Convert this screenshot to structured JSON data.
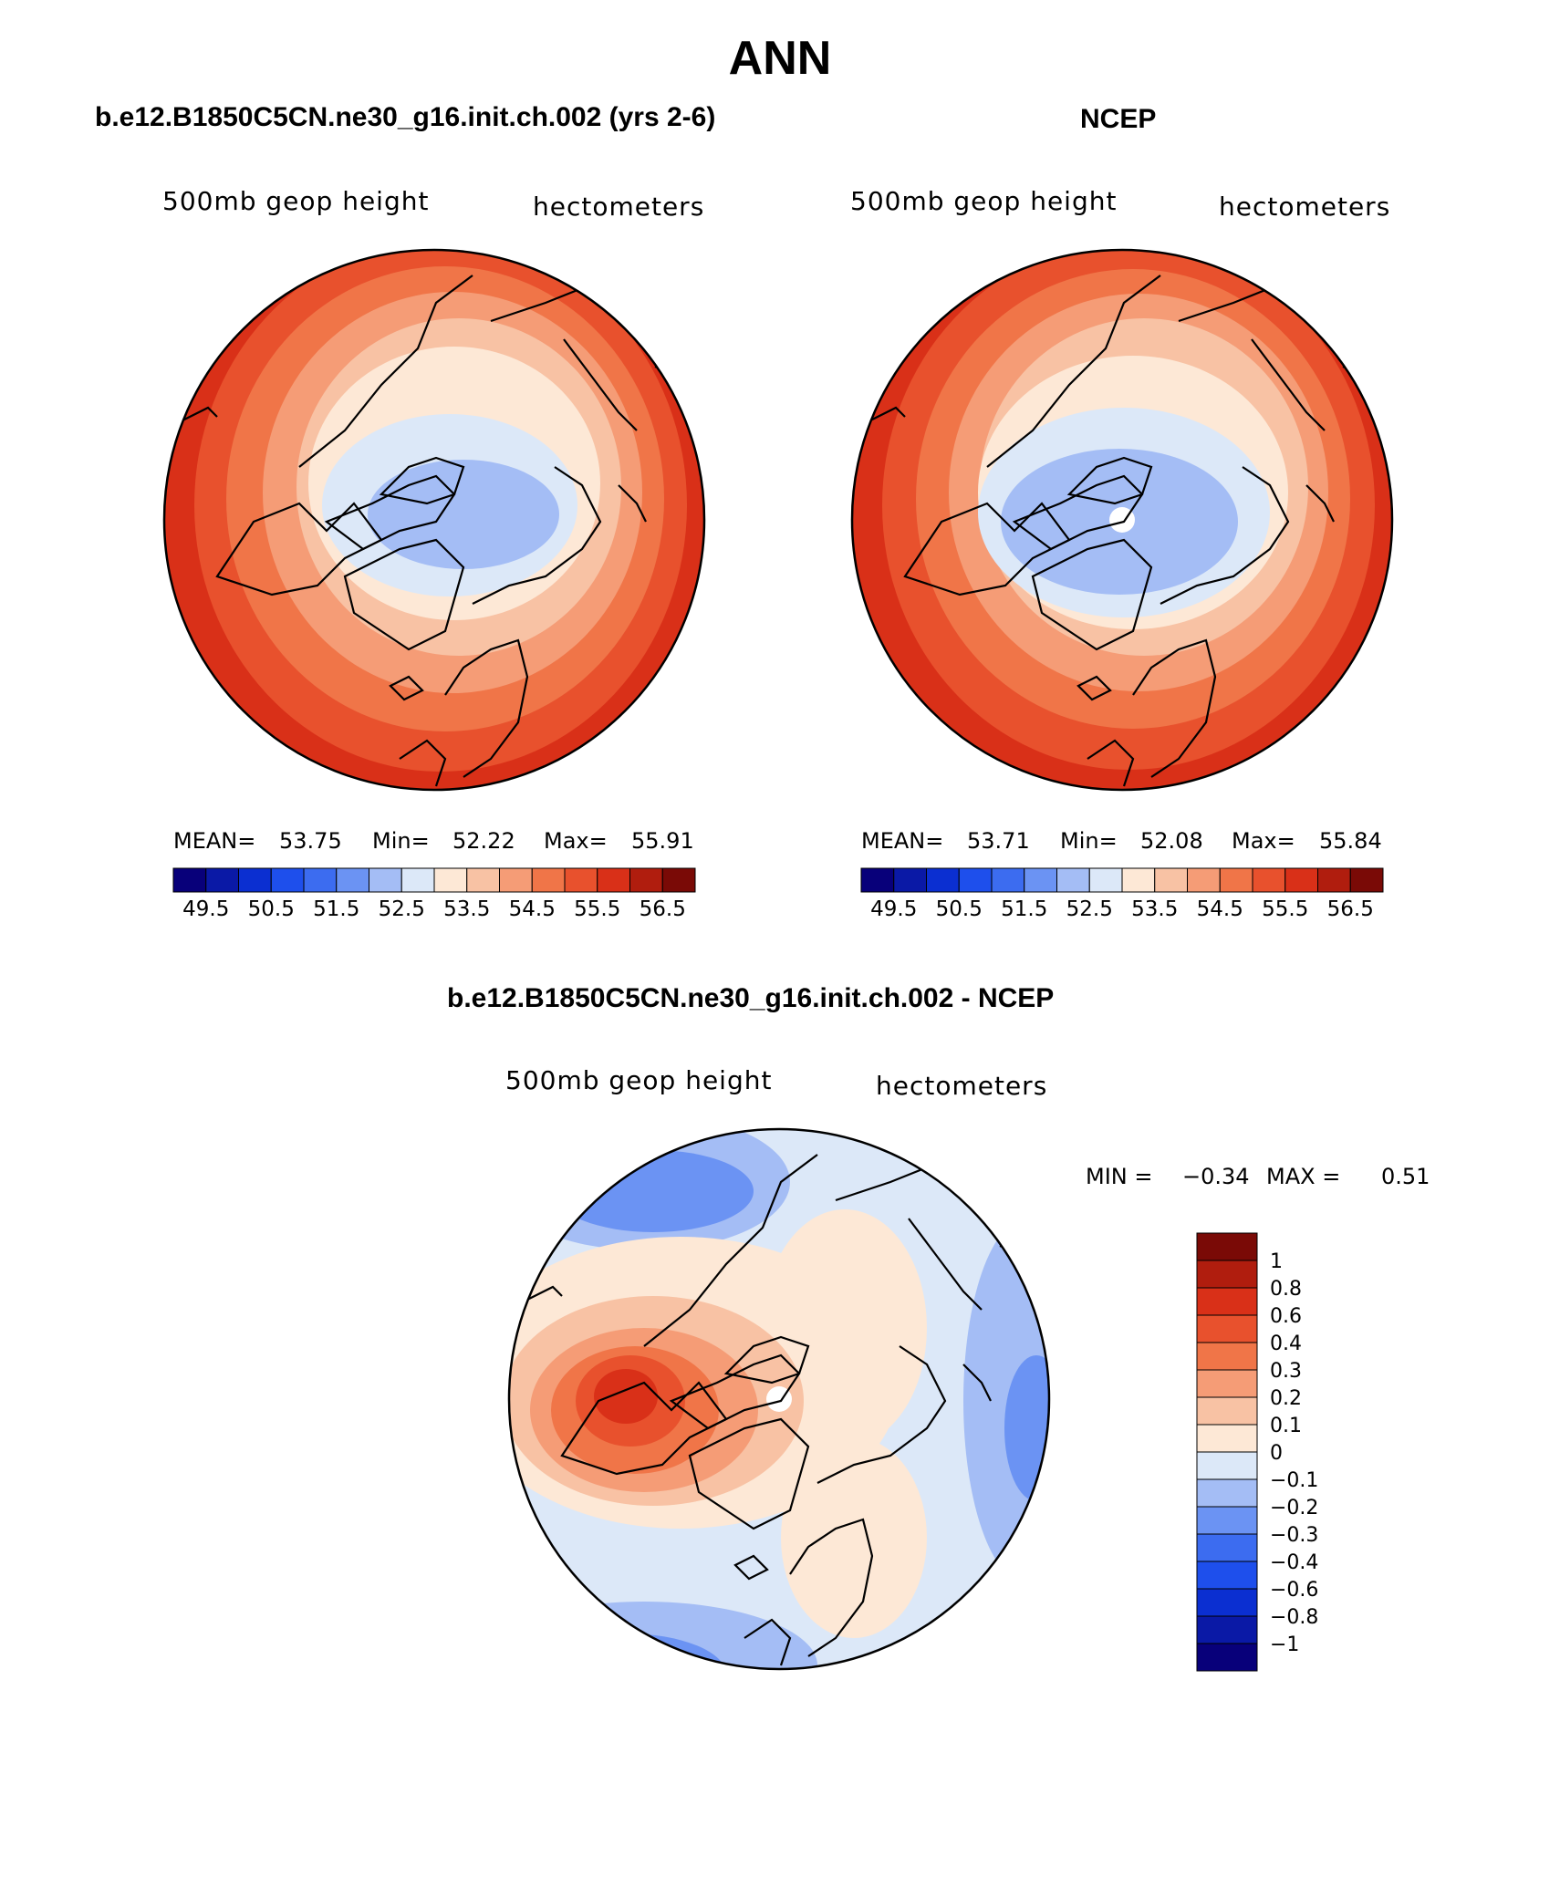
{
  "figure_title": "ANN",
  "panels": {
    "model": {
      "title": "b.e12.B1850C5CN.ne30_g16.init.ch.002 (yrs 2-6)",
      "left_label": "500mb geop height",
      "right_label": "hectometers",
      "mean_label": "MEAN=",
      "mean_value": "53.75",
      "min_label": "Min=",
      "min_value": "52.22",
      "max_label": "Max=",
      "max_value": "55.91"
    },
    "obs": {
      "title": "NCEP",
      "left_label": "500mb geop height",
      "right_label": "hectometers",
      "mean_label": "MEAN=",
      "mean_value": "53.71",
      "min_label": "Min=",
      "min_value": "52.08",
      "max_label": "Max=",
      "max_value": "55.84"
    },
    "diff": {
      "title": "b.e12.B1850C5CN.ne30_g16.init.ch.002 - NCEP",
      "left_label": "500mb geop height",
      "right_label": "hectometers",
      "min_label": "MIN =",
      "min_value": "−0.34",
      "max_label": "MAX =",
      "max_value": "0.51"
    }
  },
  "colorbar_abs": {
    "tick_labels": [
      "49.5",
      "50.5",
      "51.5",
      "52.5",
      "53.5",
      "54.5",
      "55.5",
      "56.5"
    ],
    "colors": [
      "#08007a",
      "#0a19a6",
      "#0b2fd1",
      "#1e4fec",
      "#3c6cf0",
      "#6b93f3",
      "#a4bdf5",
      "#dce8f8",
      "#fde8d6",
      "#f8c2a4",
      "#f59c76",
      "#f07548",
      "#e8512d",
      "#d93018",
      "#b01d0e",
      "#7a0a06"
    ]
  },
  "colorbar_diff": {
    "tick_labels": [
      "1",
      "0.8",
      "0.6",
      "0.4",
      "0.3",
      "0.2",
      "0.1",
      "0",
      "−0.1",
      "−0.2",
      "−0.3",
      "−0.4",
      "−0.6",
      "−0.8",
      "−1"
    ],
    "colors": [
      "#7a0a06",
      "#b01d0e",
      "#d93018",
      "#e8512d",
      "#f07548",
      "#f59c76",
      "#f8c2a4",
      "#fde8d6",
      "#dce8f8",
      "#a4bdf5",
      "#6b93f3",
      "#3c6cf0",
      "#1e4fec",
      "#0b2fd1",
      "#0a19a6",
      "#08007a"
    ]
  },
  "chart_data": [
    {
      "type": "heatmap",
      "title": "b.e12.B1850C5CN.ne30_g16.init.ch.002 (yrs 2-6)",
      "variable": "500mb geop height",
      "units": "hectometers",
      "projection": "north polar stereographic",
      "contour_levels": [
        49.5,
        50.0,
        50.5,
        51.0,
        51.5,
        52.0,
        52.5,
        53.0,
        53.5,
        54.0,
        54.5,
        55.0,
        55.5,
        56.0,
        56.5
      ],
      "mean": 53.75,
      "min": 52.22,
      "max": 55.91
    },
    {
      "type": "heatmap",
      "title": "NCEP",
      "variable": "500mb geop height",
      "units": "hectometers",
      "projection": "north polar stereographic",
      "contour_levels": [
        49.5,
        50.0,
        50.5,
        51.0,
        51.5,
        52.0,
        52.5,
        53.0,
        53.5,
        54.0,
        54.5,
        55.0,
        55.5,
        56.0,
        56.5
      ],
      "mean": 53.71,
      "min": 52.08,
      "max": 55.84
    },
    {
      "type": "heatmap",
      "title": "b.e12.B1850C5CN.ne30_g16.init.ch.002 - NCEP",
      "variable": "500mb geop height",
      "units": "hectometers",
      "projection": "north polar stereographic",
      "contour_levels": [
        -1,
        -0.8,
        -0.6,
        -0.4,
        -0.3,
        -0.2,
        -0.1,
        0,
        0.1,
        0.2,
        0.3,
        0.4,
        0.6,
        0.8,
        1
      ],
      "min": -0.34,
      "max": 0.51
    }
  ]
}
